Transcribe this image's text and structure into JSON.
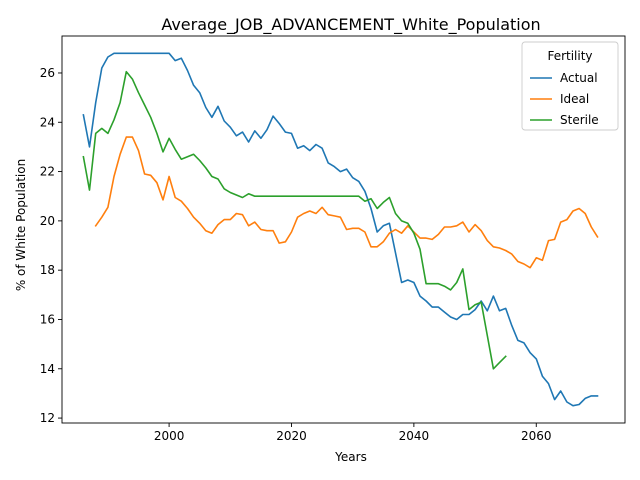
{
  "chart_data": {
    "type": "line",
    "title": "Average_JOB_ADVANCEMENT_White_Population",
    "xlabel": "Years",
    "ylabel": "% of White Population",
    "xlim": [
      1982.5,
      2074.5
    ],
    "ylim": [
      11.8,
      27.5
    ],
    "xticks": [
      2000,
      2020,
      2040,
      2060
    ],
    "yticks": [
      12,
      14,
      16,
      18,
      20,
      22,
      24,
      26
    ],
    "grid": false,
    "legend": {
      "title": "Fertility",
      "position": "top-right"
    },
    "series": [
      {
        "name": "Actual",
        "color": "#1f77b4",
        "points": [
          [
            1986,
            24.3
          ],
          [
            1987,
            23.0
          ],
          [
            1988,
            24.8
          ],
          [
            1989,
            26.2
          ],
          [
            1990,
            26.65
          ],
          [
            1991,
            26.8
          ],
          [
            1992,
            26.8
          ],
          [
            1993,
            26.8
          ],
          [
            1994,
            26.8
          ],
          [
            1995,
            26.8
          ],
          [
            1996,
            26.8
          ],
          [
            1997,
            26.8
          ],
          [
            1998,
            26.8
          ],
          [
            1999,
            26.8
          ],
          [
            2000,
            26.8
          ],
          [
            2001,
            26.5
          ],
          [
            2002,
            26.6
          ],
          [
            2003,
            26.1
          ],
          [
            2004,
            25.5
          ],
          [
            2005,
            25.2
          ],
          [
            2006,
            24.6
          ],
          [
            2007,
            24.2
          ],
          [
            2008,
            24.65
          ],
          [
            2009,
            24.05
          ],
          [
            2010,
            23.8
          ],
          [
            2011,
            23.45
          ],
          [
            2012,
            23.6
          ],
          [
            2013,
            23.2
          ],
          [
            2014,
            23.65
          ],
          [
            2015,
            23.35
          ],
          [
            2016,
            23.7
          ],
          [
            2017,
            24.25
          ],
          [
            2018,
            23.95
          ],
          [
            2019,
            23.6
          ],
          [
            2020,
            23.55
          ],
          [
            2021,
            22.95
          ],
          [
            2022,
            23.05
          ],
          [
            2023,
            22.85
          ],
          [
            2024,
            23.1
          ],
          [
            2025,
            22.95
          ],
          [
            2026,
            22.35
          ],
          [
            2027,
            22.2
          ],
          [
            2028,
            22.0
          ],
          [
            2029,
            22.1
          ],
          [
            2030,
            21.75
          ],
          [
            2031,
            21.6
          ],
          [
            2032,
            21.2
          ],
          [
            2033,
            20.5
          ],
          [
            2034,
            19.55
          ],
          [
            2035,
            19.8
          ],
          [
            2036,
            19.9
          ],
          [
            2037,
            18.7
          ],
          [
            2038,
            17.5
          ],
          [
            2039,
            17.6
          ],
          [
            2040,
            17.5
          ],
          [
            2041,
            16.95
          ],
          [
            2042,
            16.75
          ],
          [
            2043,
            16.5
          ],
          [
            2044,
            16.5
          ],
          [
            2045,
            16.3
          ],
          [
            2046,
            16.1
          ],
          [
            2047,
            16.0
          ],
          [
            2048,
            16.2
          ],
          [
            2049,
            16.2
          ],
          [
            2050,
            16.4
          ],
          [
            2051,
            16.75
          ],
          [
            2052,
            16.35
          ],
          [
            2053,
            16.95
          ],
          [
            2054,
            16.35
          ],
          [
            2055,
            16.45
          ],
          [
            2056,
            15.75
          ],
          [
            2057,
            15.15
          ],
          [
            2058,
            15.05
          ],
          [
            2059,
            14.65
          ],
          [
            2060,
            14.4
          ],
          [
            2061,
            13.7
          ],
          [
            2062,
            13.4
          ],
          [
            2063,
            12.75
          ],
          [
            2064,
            13.1
          ],
          [
            2065,
            12.65
          ],
          [
            2066,
            12.5
          ],
          [
            2067,
            12.55
          ],
          [
            2068,
            12.8
          ],
          [
            2069,
            12.9
          ],
          [
            2070,
            12.9
          ]
        ]
      },
      {
        "name": "Ideal",
        "color": "#ff7f0e",
        "points": [
          [
            1988,
            19.8
          ],
          [
            1989,
            20.15
          ],
          [
            1990,
            20.55
          ],
          [
            1991,
            21.8
          ],
          [
            1992,
            22.7
          ],
          [
            1993,
            23.4
          ],
          [
            1994,
            23.4
          ],
          [
            1995,
            22.85
          ],
          [
            1996,
            21.9
          ],
          [
            1997,
            21.85
          ],
          [
            1998,
            21.55
          ],
          [
            1999,
            20.85
          ],
          [
            2000,
            21.8
          ],
          [
            2001,
            20.95
          ],
          [
            2002,
            20.8
          ],
          [
            2003,
            20.5
          ],
          [
            2004,
            20.15
          ],
          [
            2005,
            19.9
          ],
          [
            2006,
            19.6
          ],
          [
            2007,
            19.5
          ],
          [
            2008,
            19.85
          ],
          [
            2009,
            20.05
          ],
          [
            2010,
            20.05
          ],
          [
            2011,
            20.3
          ],
          [
            2012,
            20.25
          ],
          [
            2013,
            19.8
          ],
          [
            2014,
            19.95
          ],
          [
            2015,
            19.65
          ],
          [
            2016,
            19.6
          ],
          [
            2017,
            19.6
          ],
          [
            2018,
            19.1
          ],
          [
            2019,
            19.15
          ],
          [
            2020,
            19.55
          ],
          [
            2021,
            20.15
          ],
          [
            2022,
            20.3
          ],
          [
            2023,
            20.4
          ],
          [
            2024,
            20.3
          ],
          [
            2025,
            20.55
          ],
          [
            2026,
            20.25
          ],
          [
            2027,
            20.2
          ],
          [
            2028,
            20.15
          ],
          [
            2029,
            19.65
          ],
          [
            2030,
            19.7
          ],
          [
            2031,
            19.7
          ],
          [
            2032,
            19.55
          ],
          [
            2033,
            18.95
          ],
          [
            2034,
            18.95
          ],
          [
            2035,
            19.15
          ],
          [
            2036,
            19.5
          ],
          [
            2037,
            19.65
          ],
          [
            2038,
            19.5
          ],
          [
            2039,
            19.8
          ],
          [
            2040,
            19.55
          ],
          [
            2041,
            19.3
          ],
          [
            2042,
            19.3
          ],
          [
            2043,
            19.25
          ],
          [
            2044,
            19.45
          ],
          [
            2045,
            19.75
          ],
          [
            2046,
            19.75
          ],
          [
            2047,
            19.8
          ],
          [
            2048,
            19.95
          ],
          [
            2049,
            19.55
          ],
          [
            2050,
            19.85
          ],
          [
            2051,
            19.6
          ],
          [
            2052,
            19.2
          ],
          [
            2053,
            18.95
          ],
          [
            2054,
            18.9
          ],
          [
            2055,
            18.8
          ],
          [
            2056,
            18.65
          ],
          [
            2057,
            18.35
          ],
          [
            2058,
            18.25
          ],
          [
            2059,
            18.1
          ],
          [
            2060,
            18.5
          ],
          [
            2061,
            18.4
          ],
          [
            2062,
            19.2
          ],
          [
            2063,
            19.25
          ],
          [
            2064,
            19.95
          ],
          [
            2065,
            20.05
          ],
          [
            2066,
            20.4
          ],
          [
            2067,
            20.5
          ],
          [
            2068,
            20.3
          ],
          [
            2069,
            19.75
          ],
          [
            2070,
            19.35
          ]
        ]
      },
      {
        "name": "Sterile",
        "color": "#2ca02c",
        "points": [
          [
            1986,
            22.6
          ],
          [
            1987,
            21.25
          ],
          [
            1988,
            23.55
          ],
          [
            1989,
            23.75
          ],
          [
            1990,
            23.55
          ],
          [
            1991,
            24.1
          ],
          [
            1992,
            24.8
          ],
          [
            1993,
            26.05
          ],
          [
            1994,
            25.75
          ],
          [
            1995,
            25.2
          ],
          [
            1996,
            24.7
          ],
          [
            1997,
            24.2
          ],
          [
            1998,
            23.55
          ],
          [
            1999,
            22.8
          ],
          [
            2000,
            23.35
          ],
          [
            2001,
            22.9
          ],
          [
            2002,
            22.5
          ],
          [
            2003,
            22.6
          ],
          [
            2004,
            22.7
          ],
          [
            2005,
            22.45
          ],
          [
            2006,
            22.15
          ],
          [
            2007,
            21.8
          ],
          [
            2008,
            21.7
          ],
          [
            2009,
            21.3
          ],
          [
            2010,
            21.15
          ],
          [
            2011,
            21.05
          ],
          [
            2012,
            20.95
          ],
          [
            2013,
            21.1
          ],
          [
            2014,
            21.0
          ],
          [
            2015,
            21.0
          ],
          [
            2020,
            21.0
          ],
          [
            2025,
            21.0
          ],
          [
            2030,
            21.0
          ],
          [
            2031,
            21.0
          ],
          [
            2032,
            20.8
          ],
          [
            2033,
            20.9
          ],
          [
            2034,
            20.5
          ],
          [
            2035,
            20.75
          ],
          [
            2036,
            20.95
          ],
          [
            2037,
            20.3
          ],
          [
            2038,
            20.0
          ],
          [
            2039,
            19.9
          ],
          [
            2040,
            19.5
          ],
          [
            2041,
            18.85
          ],
          [
            2042,
            17.45
          ],
          [
            2043,
            17.45
          ],
          [
            2044,
            17.45
          ],
          [
            2045,
            17.35
          ],
          [
            2046,
            17.2
          ],
          [
            2047,
            17.5
          ],
          [
            2048,
            18.05
          ],
          [
            2049,
            16.4
          ],
          [
            2050,
            16.6
          ],
          [
            2051,
            16.7
          ],
          [
            2052,
            15.35
          ],
          [
            2053,
            14.0
          ],
          [
            2054,
            14.25
          ],
          [
            2055,
            14.5
          ]
        ]
      }
    ]
  }
}
